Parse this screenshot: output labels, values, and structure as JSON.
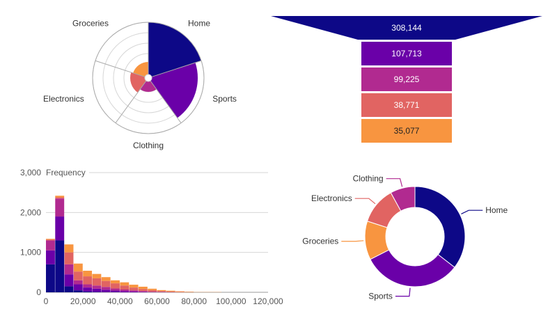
{
  "palette": {
    "Home": "#0d0887",
    "Sports": "#6a00a8",
    "Clothing": "#b12a90",
    "Electronics": "#e16462",
    "Groceries": "#f89540",
    "text": "#333333",
    "axis_text": "#555555",
    "grid": "#d6d6d6",
    "funnel_text_light": "#ffffff",
    "funnel_text_dark": "#222222"
  },
  "chart_data": [
    {
      "id": "polar",
      "type": "polar-area",
      "categories": [
        "Home",
        "Sports",
        "Clothing",
        "Electronics",
        "Groceries"
      ],
      "values": [
        100,
        88,
        20,
        28,
        24
      ],
      "rlim": [
        0,
        100
      ],
      "grid": true
    },
    {
      "id": "funnel",
      "type": "funnel",
      "values": [
        308144,
        107713,
        99225,
        38771,
        35077
      ],
      "labels": [
        "308,144",
        "107,713",
        "99,225",
        "38,771",
        "35,077"
      ]
    },
    {
      "id": "histogram",
      "type": "bar",
      "stacked": true,
      "ylabel": "Frequency",
      "xlim": [
        0,
        120000
      ],
      "ylim": [
        0,
        3000
      ],
      "x_ticks": [
        "0",
        "20,000",
        "40,000",
        "60,000",
        "80,000",
        "100,000",
        "120,000"
      ],
      "y_ticks": [
        "0",
        "1,000",
        "2,000",
        "3,000"
      ],
      "bin_width": 5000,
      "bin_starts": [
        0,
        5000,
        10000,
        15000,
        20000,
        25000,
        30000,
        35000,
        40000,
        45000,
        50000,
        55000,
        60000,
        65000,
        70000,
        75000,
        80000,
        85000,
        90000,
        95000,
        100000,
        105000,
        110000,
        115000
      ],
      "series": [
        {
          "name": "Home",
          "values": [
            700,
            1300,
            150,
            50,
            20,
            10,
            5,
            5,
            0,
            0,
            0,
            0,
            0,
            0,
            0,
            0,
            0,
            0,
            0,
            0,
            0,
            0,
            0,
            0
          ]
        },
        {
          "name": "Sports",
          "values": [
            350,
            600,
            300,
            150,
            100,
            80,
            60,
            40,
            30,
            20,
            10,
            5,
            5,
            0,
            0,
            0,
            0,
            0,
            0,
            0,
            0,
            0,
            0,
            0
          ]
        },
        {
          "name": "Clothing",
          "values": [
            250,
            450,
            250,
            100,
            80,
            80,
            70,
            50,
            40,
            30,
            20,
            10,
            5,
            5,
            0,
            0,
            0,
            0,
            0,
            0,
            0,
            0,
            0,
            0
          ]
        },
        {
          "name": "Electronics",
          "values": [
            20,
            30,
            300,
            220,
            200,
            180,
            150,
            130,
            100,
            70,
            50,
            40,
            20,
            15,
            10,
            5,
            0,
            0,
            0,
            0,
            0,
            0,
            0,
            0
          ]
        },
        {
          "name": "Groceries",
          "values": [
            20,
            40,
            200,
            200,
            140,
            110,
            95,
            75,
            80,
            70,
            60,
            35,
            25,
            20,
            15,
            10,
            5,
            5,
            5,
            0,
            0,
            0,
            0,
            0
          ]
        }
      ]
    },
    {
      "id": "donut",
      "type": "pie",
      "hole": true,
      "categories": [
        "Home",
        "Sports",
        "Groceries",
        "Electronics",
        "Clothing"
      ],
      "values": [
        35.5,
        32,
        12.5,
        12,
        8
      ]
    }
  ]
}
